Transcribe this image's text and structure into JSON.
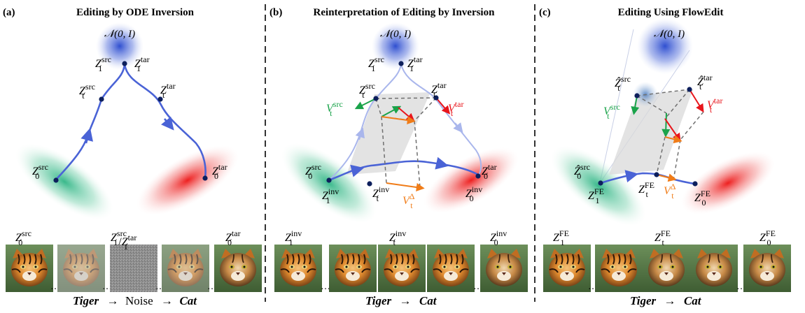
{
  "panels": [
    {
      "tag": "(a)",
      "title": "Editing by ODE Inversion",
      "noise_label": "𝒩(0, I)",
      "points": [
        {
          "base": "Z",
          "sub": "1",
          "sup": "src"
        },
        {
          "base": "Z",
          "sub": "1",
          "sup": "tar"
        },
        {
          "base": "Z",
          "sub": "t",
          "sup": "src"
        },
        {
          "base": "Z",
          "sub": "t",
          "sup": "tar"
        },
        {
          "base": "Z",
          "sub": "0",
          "sup": "src"
        },
        {
          "base": "Z",
          "sub": "0",
          "sup": "tar"
        }
      ],
      "strip_labels": [
        {
          "base": "Z",
          "sub": "0",
          "sup": "src"
        },
        {
          "base": "Z",
          "sub": "1",
          "sup": "src",
          "sep": "/",
          "base2": "Z",
          "sub2": "1",
          "sup2": "tar"
        },
        {
          "base": "Z",
          "sub": "0",
          "sup": "tar"
        }
      ],
      "caption": {
        "a": "Tiger",
        "mid": "Noise",
        "b": "Cat"
      }
    },
    {
      "tag": "(b)",
      "title": "Reinterpretation of Editing by Inversion",
      "noise_label": "𝒩(0, I)",
      "points": [
        {
          "base": "Z",
          "sub": "1",
          "sup": "src"
        },
        {
          "base": "Z",
          "sub": "1",
          "sup": "tar"
        },
        {
          "base": "Z",
          "sub": "t",
          "sup": "src"
        },
        {
          "base": "Z",
          "sub": "t",
          "sup": "tar"
        },
        {
          "base": "Z",
          "sub": "0",
          "sup": "src"
        },
        {
          "base": "Z",
          "sub": "1",
          "sup": "inv"
        },
        {
          "base": "Z",
          "sub": "t",
          "sup": "inv"
        },
        {
          "base": "Z",
          "sub": "0",
          "sup": "inv"
        },
        {
          "base": "Z",
          "sub": "0",
          "sup": "tar"
        }
      ],
      "vectors": [
        {
          "base": "V",
          "sub": "t",
          "sup": "src",
          "color": "#1aa34a"
        },
        {
          "base": "V",
          "sub": "t",
          "sup": "tar",
          "color": "#e8151b"
        },
        {
          "base": "V",
          "sub": "t",
          "sup": "Δ",
          "color": "#f07c18"
        }
      ],
      "strip_labels": [
        {
          "base": "Z",
          "sub": "1",
          "sup": "inv"
        },
        {
          "base": "Z",
          "sub": "t",
          "sup": "inv"
        },
        {
          "base": "Z",
          "sub": "0",
          "sup": "inv"
        }
      ],
      "caption": {
        "a": "Tiger",
        "b": "Cat"
      }
    },
    {
      "tag": "(c)",
      "title": "Editing Using FlowEdit",
      "noise_label": "𝒩(0, I)",
      "points": [
        {
          "base": "Ẑ",
          "sub": "t",
          "sup": "src"
        },
        {
          "base": "Ẑ",
          "sub": "t",
          "sup": "tar"
        },
        {
          "base": "Ẑ",
          "sub": "0",
          "sup": "src"
        },
        {
          "base": "Z",
          "sub": "1",
          "sup": "FE"
        },
        {
          "base": "Z",
          "sub": "t",
          "sup": "FE"
        },
        {
          "base": "Z",
          "sub": "0",
          "sup": "FE"
        }
      ],
      "vectors": [
        {
          "base": "V",
          "sub": "t",
          "sup": "src",
          "color": "#1aa34a"
        },
        {
          "base": "V",
          "sub": "t",
          "sup": "tar",
          "color": "#e8151b"
        },
        {
          "base": "V",
          "sub": "t",
          "sup": "Δ",
          "color": "#f07c18"
        }
      ],
      "strip_labels": [
        {
          "base": "Z",
          "sub": "1",
          "sup": "FE"
        },
        {
          "base": "Z",
          "sub": "t",
          "sup": "FE"
        },
        {
          "base": "Z",
          "sub": "0",
          "sup": "FE"
        }
      ],
      "caption": {
        "a": "Tiger",
        "b": "Cat"
      }
    }
  ],
  "arrow_symbol": "→",
  "colors": {
    "noise": "#4a63d6",
    "src_region": "#3fbf8f",
    "tar_region": "#ee2a2a",
    "path": "#4a63d6",
    "point": "#0d1f5c",
    "v_src": "#1aa34a",
    "v_tar": "#e8151b",
    "v_delta": "#f07c18",
    "dashed": "#707070",
    "plane": "#d9d9d9"
  }
}
